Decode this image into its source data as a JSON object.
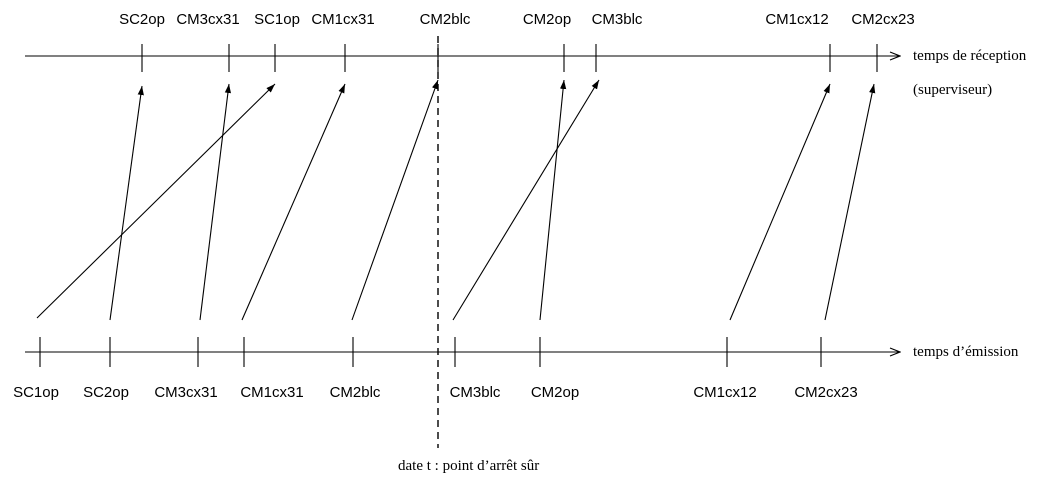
{
  "axes": {
    "reception_label": "temps de réception",
    "reception_sublabel": "(superviseur)",
    "emission_label": "temps d’émission"
  },
  "cut": {
    "label": "date t : point d’arrêt sûr"
  },
  "reception_events": [
    "SC2op",
    "CM3cx31",
    "SC1op",
    "CM1cx31",
    "CM2blc",
    "CM2op",
    "CM3blc",
    "CM1cx12",
    "CM2cx23"
  ],
  "emission_events": [
    "SC1op",
    "SC2op",
    "CM3cx31",
    "CM1cx31",
    "CM2blc",
    "CM3blc",
    "CM2op",
    "CM1cx12",
    "CM2cx23"
  ],
  "messages": [
    {
      "name": "SC1op",
      "from": 0,
      "to": 2
    },
    {
      "name": "SC2op",
      "from": 1,
      "to": 0
    },
    {
      "name": "CM3cx31",
      "from": 2,
      "to": 1
    },
    {
      "name": "CM1cx31",
      "from": 3,
      "to": 3
    },
    {
      "name": "CM2blc",
      "from": 4,
      "to": 4
    },
    {
      "name": "CM3blc",
      "from": 5,
      "to": 6
    },
    {
      "name": "CM2op",
      "from": 6,
      "to": 5
    },
    {
      "name": "CM1cx12",
      "from": 7,
      "to": 7
    },
    {
      "name": "CM2cx23",
      "from": 8,
      "to": 8
    }
  ]
}
